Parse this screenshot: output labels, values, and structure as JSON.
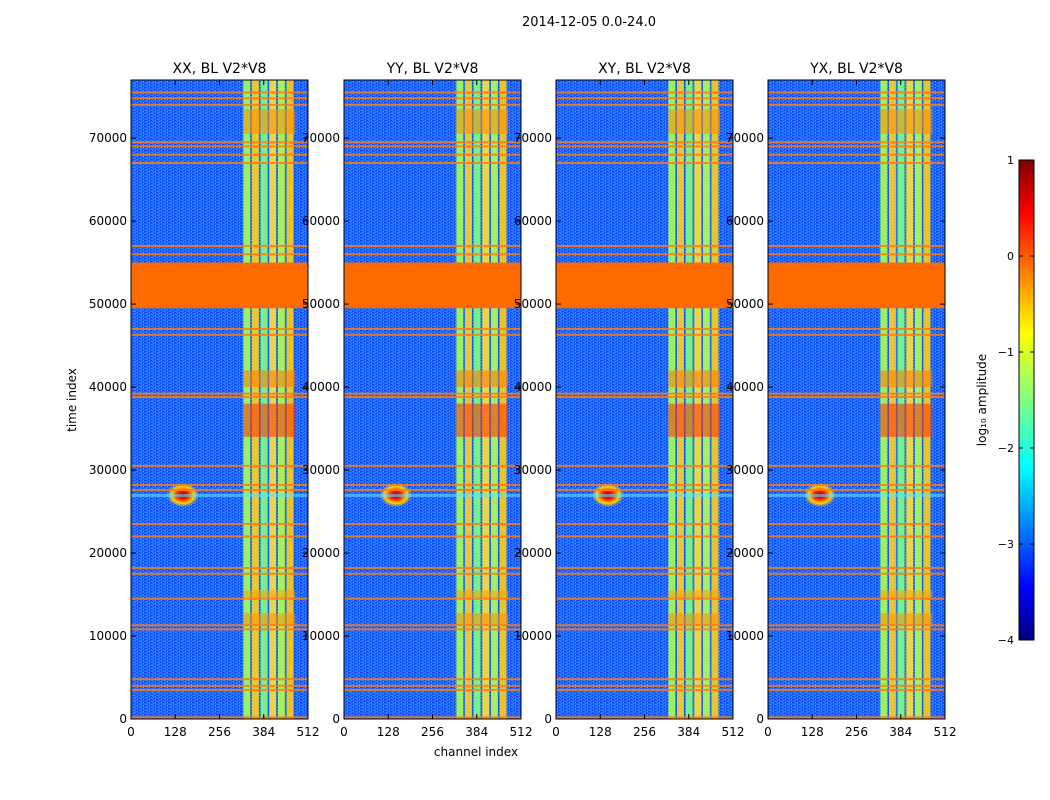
{
  "chart_data": {
    "type": "heatmap",
    "suptitle": "2014-12-05 0.0-24.0",
    "xlabel": "channel index",
    "ylabel": "time index",
    "xlim": [
      0,
      512
    ],
    "ylim": [
      0,
      77000
    ],
    "xticks": [
      0,
      128,
      256,
      384,
      512
    ],
    "yticks": [
      0,
      10000,
      20000,
      30000,
      40000,
      50000,
      60000,
      70000
    ],
    "panels": [
      {
        "title": "XX, BL V2*V8"
      },
      {
        "title": "YY, BL V2*V8"
      },
      {
        "title": "XY, BL V2*V8"
      },
      {
        "title": "YX, BL V2*V8"
      }
    ],
    "flagged_time_rows": [
      200,
      3500,
      4000,
      4800,
      10800,
      11300,
      14500,
      17500,
      18200,
      22000,
      23500,
      27600,
      28200,
      30500,
      38800,
      39200,
      46300,
      47000,
      56000,
      57000,
      67000,
      68000,
      69000,
      69500,
      74000,
      74800,
      75500
    ],
    "flagged_block": {
      "start": 49500,
      "end": 55000
    },
    "bright_channel_band": {
      "start": 325,
      "end": 475
    },
    "rfi_burst": {
      "channel": 150,
      "time": 27000
    },
    "colorbar": {
      "label": "log₁₀ amplitude",
      "range": [
        -4,
        1
      ],
      "ticks": [
        "1",
        "0",
        "−1",
        "−2",
        "−3",
        "−4"
      ],
      "colormap": "jet"
    }
  }
}
